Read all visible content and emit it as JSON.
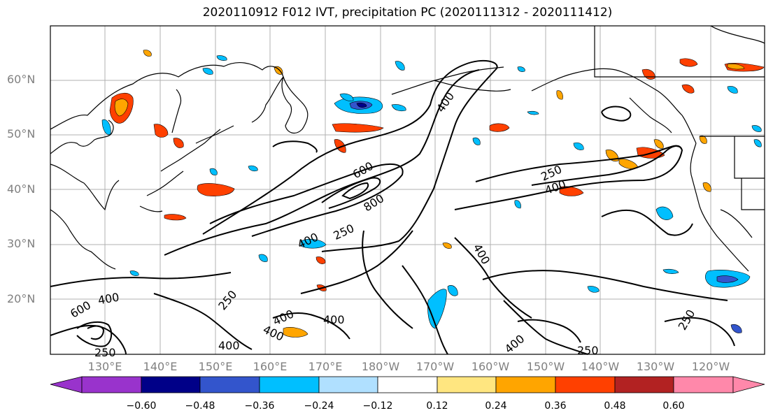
{
  "title": "2020110912 F012 IVT, precipitation PC (2020111312 - 2020111412)",
  "lat_labels": [
    "60°N",
    "50°N",
    "40°N",
    "30°N",
    "20°N"
  ],
  "lon_labels": [
    "130°E",
    "140°E",
    "150°E",
    "160°E",
    "170°E",
    "180°W",
    "170°W",
    "160°W",
    "150°W",
    "140°W",
    "130°W",
    "120°W"
  ],
  "contour_labels": [
    "400",
    "600",
    "800",
    "250",
    "400",
    "250",
    "400",
    "400",
    "250",
    "600",
    "400",
    "400",
    "400",
    "400",
    "400",
    "400",
    "250",
    "250",
    "250"
  ],
  "colorbar": {
    "tick_labels": [
      "−0.60",
      "−0.48",
      "−0.36",
      "−0.24",
      "−0.12",
      "0.12",
      "0.24",
      "0.36",
      "0.48",
      "0.60"
    ],
    "colors": [
      "#9933cc",
      "#000088",
      "#3355cc",
      "#00bfff",
      "#b0e0ff",
      "#ffffff",
      "#ffe680",
      "#ffa500",
      "#ff4000",
      "#b22222",
      "#ff88aa"
    ]
  },
  "colors": {
    "coast": "#000000",
    "contour": "#000000",
    "grid": "#b0b0b0",
    "tick_label": "#808080"
  }
}
